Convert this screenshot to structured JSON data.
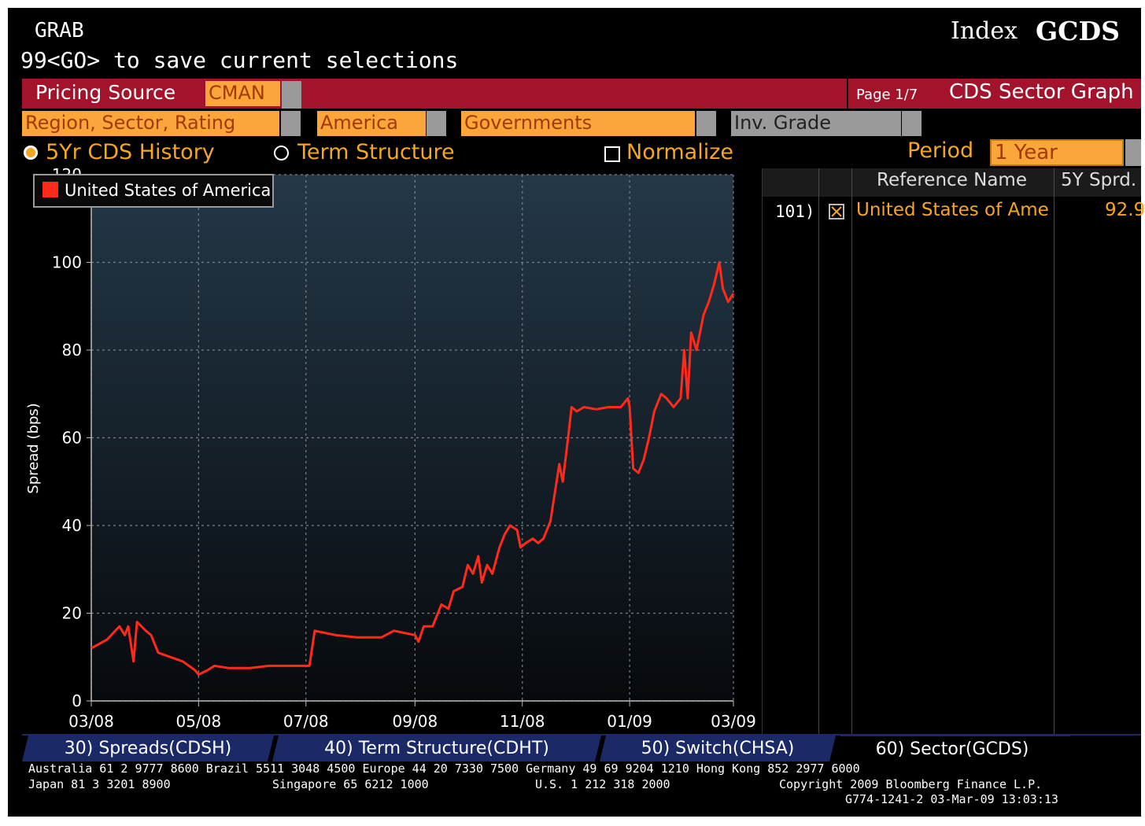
{
  "header": {
    "app_label": "GRAB",
    "instruction": "99<GO> to save current selections",
    "index_label": "Index",
    "index_ticker": "GCDS"
  },
  "pricing": {
    "label": "Pricing Source",
    "value": "CMAN",
    "page": "Page 1/7",
    "screen_title": "CDS Sector Graph"
  },
  "filters": {
    "group_label": "Region, Sector, Rating",
    "region": "America",
    "sector": "Governments",
    "rating": "Inv. Grade"
  },
  "options": {
    "history_label": "5Yr CDS History",
    "history_selected": true,
    "term_label": "Term Structure",
    "normalize_label": "Normalize",
    "period_label": "Period",
    "period_value": "1 Year"
  },
  "table": {
    "headers": [
      "Reference Name",
      "5Y Sprd."
    ],
    "rows": [
      {
        "index": "101)",
        "checked": true,
        "name": "United States of Ame",
        "spread": "92.9"
      }
    ]
  },
  "tabs": [
    {
      "label": "30)  Spreads(CDSH)",
      "active": false
    },
    {
      "label": "40)  Term Structure(CDHT)",
      "active": false
    },
    {
      "label": "50)  Switch(CHSA)",
      "active": false
    },
    {
      "label": "60)  Sector(GCDS)",
      "active": true
    }
  ],
  "footer": {
    "line1": "Australia 61 2 9777 8600 Brazil 5511 3048 4500 Europe 44 20 7330 7500 Germany 49 69 9204 1210 Hong Kong 852 2977 6000",
    "line2a": "Japan 81 3 3201 8900",
    "line2b": "Singapore 65 6212 1000",
    "line2c": "U.S. 1 212 318 2000",
    "line2d": "Copyright 2009 Bloomberg Finance L.P.",
    "line3": "G774-1241-2 03-Mar-09 13:03:13"
  },
  "colors": {
    "series": "#ff2a1a",
    "accent": "#f5a623",
    "header_bar": "#a3132c"
  },
  "chart_data": {
    "type": "line",
    "title": "",
    "xlabel": "",
    "ylabel": "Spread (bps)",
    "ylim": [
      0,
      120
    ],
    "xlim": [
      "2008-03-03",
      "2009-03-03"
    ],
    "grid": true,
    "legend_position": "top-left",
    "y_ticks": [
      0,
      20,
      40,
      60,
      80,
      100,
      120
    ],
    "x_ticks": [
      {
        "date": "2008-03-03",
        "label": "03/08"
      },
      {
        "date": "2008-05-03",
        "label": "05/08"
      },
      {
        "date": "2008-07-03",
        "label": "07/08"
      },
      {
        "date": "2008-09-03",
        "label": "09/08"
      },
      {
        "date": "2008-11-03",
        "label": "11/08"
      },
      {
        "date": "2009-01-03",
        "label": "01/09"
      },
      {
        "date": "2009-03-03",
        "label": "03/09"
      }
    ],
    "series": [
      {
        "name": "United States of America",
        "color": "#ff2a1a",
        "points": [
          [
            "2008-03-03",
            12
          ],
          [
            "2008-03-12",
            14
          ],
          [
            "2008-03-19",
            17
          ],
          [
            "2008-03-22",
            15
          ],
          [
            "2008-03-24",
            17
          ],
          [
            "2008-03-27",
            9
          ],
          [
            "2008-03-29",
            18
          ],
          [
            "2008-04-03",
            16
          ],
          [
            "2008-04-06",
            15
          ],
          [
            "2008-04-10",
            11
          ],
          [
            "2008-04-17",
            10
          ],
          [
            "2008-04-24",
            9
          ],
          [
            "2008-05-01",
            7
          ],
          [
            "2008-05-03",
            6
          ],
          [
            "2008-05-08",
            7
          ],
          [
            "2008-05-12",
            8
          ],
          [
            "2008-05-20",
            7.5
          ],
          [
            "2008-06-01",
            7.5
          ],
          [
            "2008-06-12",
            8
          ],
          [
            "2008-06-25",
            8
          ],
          [
            "2008-07-01",
            8
          ],
          [
            "2008-07-05",
            8
          ],
          [
            "2008-07-08",
            16
          ],
          [
            "2008-07-20",
            15
          ],
          [
            "2008-08-01",
            14.5
          ],
          [
            "2008-08-15",
            14.5
          ],
          [
            "2008-08-22",
            16
          ],
          [
            "2008-09-03",
            15
          ],
          [
            "2008-09-05",
            13.5
          ],
          [
            "2008-09-08",
            17
          ],
          [
            "2008-09-13",
            17
          ],
          [
            "2008-09-18",
            22
          ],
          [
            "2008-09-22",
            21
          ],
          [
            "2008-09-25",
            25
          ],
          [
            "2008-09-30",
            26
          ],
          [
            "2008-10-03",
            31
          ],
          [
            "2008-10-06",
            29
          ],
          [
            "2008-10-09",
            33
          ],
          [
            "2008-10-11",
            27
          ],
          [
            "2008-10-14",
            31
          ],
          [
            "2008-10-17",
            29
          ],
          [
            "2008-10-21",
            35
          ],
          [
            "2008-10-24",
            38
          ],
          [
            "2008-10-27",
            40
          ],
          [
            "2008-10-31",
            39
          ],
          [
            "2008-11-02",
            35
          ],
          [
            "2008-11-05",
            36
          ],
          [
            "2008-11-09",
            37
          ],
          [
            "2008-11-12",
            36
          ],
          [
            "2008-11-15",
            37
          ],
          [
            "2008-11-19",
            41
          ],
          [
            "2008-11-24",
            54
          ],
          [
            "2008-11-26",
            50
          ],
          [
            "2008-11-29",
            60
          ],
          [
            "2008-12-01",
            67
          ],
          [
            "2008-12-04",
            66
          ],
          [
            "2008-12-08",
            67
          ],
          [
            "2008-12-15",
            66.5
          ],
          [
            "2008-12-22",
            67
          ],
          [
            "2008-12-29",
            67
          ],
          [
            "2009-01-02",
            69
          ],
          [
            "2009-01-03",
            67
          ],
          [
            "2009-01-05",
            53
          ],
          [
            "2009-01-08",
            52
          ],
          [
            "2009-01-11",
            55
          ],
          [
            "2009-01-14",
            60
          ],
          [
            "2009-01-17",
            66
          ],
          [
            "2009-01-21",
            70
          ],
          [
            "2009-01-24",
            69
          ],
          [
            "2009-01-28",
            67
          ],
          [
            "2009-02-01",
            69
          ],
          [
            "2009-02-03",
            80
          ],
          [
            "2009-02-05",
            69
          ],
          [
            "2009-02-07",
            84
          ],
          [
            "2009-02-10",
            80
          ],
          [
            "2009-02-14",
            88
          ],
          [
            "2009-02-17",
            91
          ],
          [
            "2009-02-20",
            95
          ],
          [
            "2009-02-23",
            100
          ],
          [
            "2009-02-25",
            94
          ],
          [
            "2009-02-28",
            91
          ],
          [
            "2009-03-03",
            92.9
          ]
        ]
      }
    ]
  }
}
